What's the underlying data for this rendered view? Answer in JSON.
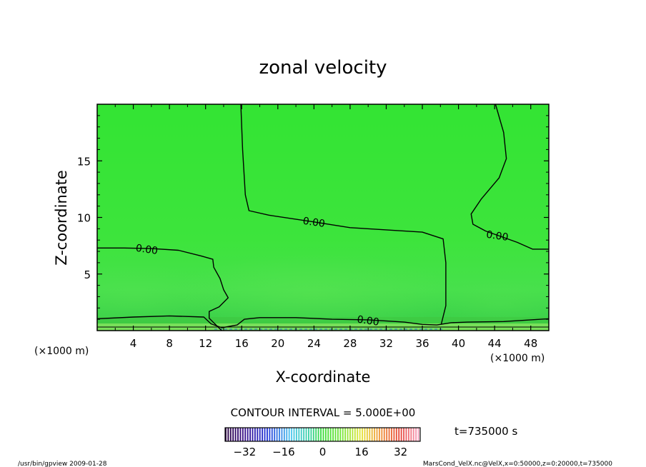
{
  "chart_data": {
    "type": "heatmap",
    "title": "zonal velocity",
    "xlabel": "X-coordinate",
    "ylabel": "Z-coordinate",
    "x_unit_left": "(×1000 m)",
    "x_unit_right": "(×1000 m)",
    "xlim": [
      0,
      50
    ],
    "ylim": [
      0,
      20
    ],
    "x_ticks": [
      4,
      8,
      12,
      16,
      20,
      24,
      28,
      32,
      36,
      40,
      44,
      48
    ],
    "x_tick_labels": [
      "4",
      "8",
      "12",
      "16",
      "20",
      "24",
      "28",
      "32",
      "36",
      "40",
      "44",
      "48"
    ],
    "y_ticks": [
      5,
      10,
      15
    ],
    "y_tick_labels": [
      "5",
      "10",
      "15"
    ],
    "contour_interval_text": "CONTOUR INTERVAL = 5.000E+00",
    "time_label": "t=735000 s",
    "colorbar": {
      "range": [
        -40,
        40
      ],
      "ticks": [
        -32,
        -16,
        0,
        16,
        32
      ],
      "tick_labels": [
        "−32",
        "−16",
        "0",
        "16",
        "32"
      ]
    },
    "contour_labels": [
      {
        "text": "0.00",
        "x": 5.5,
        "z": 7.2
      },
      {
        "text": "0.00",
        "x": 24.0,
        "z": 9.6
      },
      {
        "text": "0.00",
        "x": 44.3,
        "z": 8.4
      },
      {
        "text": "0.00",
        "x": 30.0,
        "z": 0.9
      }
    ],
    "zero_contours": [
      [
        [
          0,
          7.3
        ],
        [
          3,
          7.3
        ],
        [
          6,
          7.25
        ],
        [
          9,
          7.1
        ],
        [
          11.5,
          6.6
        ],
        [
          12.8,
          6.3
        ],
        [
          12.9,
          5.6
        ],
        [
          13.6,
          4.6
        ],
        [
          14.0,
          3.6
        ],
        [
          14.5,
          2.9
        ],
        [
          13.5,
          2.1
        ],
        [
          12.4,
          1.7
        ],
        [
          12.4,
          1.1
        ],
        [
          13.4,
          0.3
        ],
        [
          13.8,
          0
        ]
      ],
      [
        [
          15.9,
          20
        ],
        [
          16.1,
          16
        ],
        [
          16.4,
          12
        ],
        [
          16.8,
          10.6
        ],
        [
          19,
          10.2
        ],
        [
          24,
          9.6
        ],
        [
          28,
          9.1
        ],
        [
          32,
          8.9
        ],
        [
          36,
          8.7
        ],
        [
          38.3,
          8.1
        ],
        [
          38.6,
          6
        ],
        [
          38.6,
          2.2
        ],
        [
          38.1,
          0.6
        ]
      ],
      [
        [
          44.1,
          20
        ],
        [
          45.0,
          17.5
        ],
        [
          45.3,
          15.2
        ],
        [
          44.5,
          13.5
        ],
        [
          42.5,
          11.6
        ],
        [
          41.4,
          10.3
        ],
        [
          41.6,
          9.4
        ],
        [
          43,
          8.8
        ],
        [
          46.5,
          7.8
        ],
        [
          48.2,
          7.2
        ],
        [
          50,
          7.2
        ]
      ],
      [
        [
          0,
          1.05
        ],
        [
          4,
          1.2
        ],
        [
          8,
          1.3
        ],
        [
          11.8,
          1.2
        ],
        [
          12.6,
          0.6
        ],
        [
          13.8,
          0.25
        ],
        [
          15.5,
          0.5
        ],
        [
          16.3,
          1.0
        ],
        [
          18,
          1.15
        ],
        [
          22,
          1.15
        ],
        [
          26,
          1.0
        ],
        [
          30,
          0.95
        ],
        [
          34,
          0.75
        ],
        [
          36,
          0.55
        ],
        [
          37.6,
          0.5
        ],
        [
          39.2,
          0.7
        ],
        [
          41,
          0.75
        ],
        [
          45,
          0.8
        ],
        [
          50,
          1.05
        ]
      ]
    ]
  },
  "footer": {
    "left": "/usr/bin/gpview   2009-01-28",
    "right": "MarsCond_VelX.nc@VelX,x=0:50000,z=0:20000,t=735000"
  },
  "colors": {
    "field_top": "#33e433",
    "field_mid": "#44e04a",
    "near_surface": "#3ecb3e",
    "surface_strip": "#78e05a",
    "contour": "#000000"
  }
}
